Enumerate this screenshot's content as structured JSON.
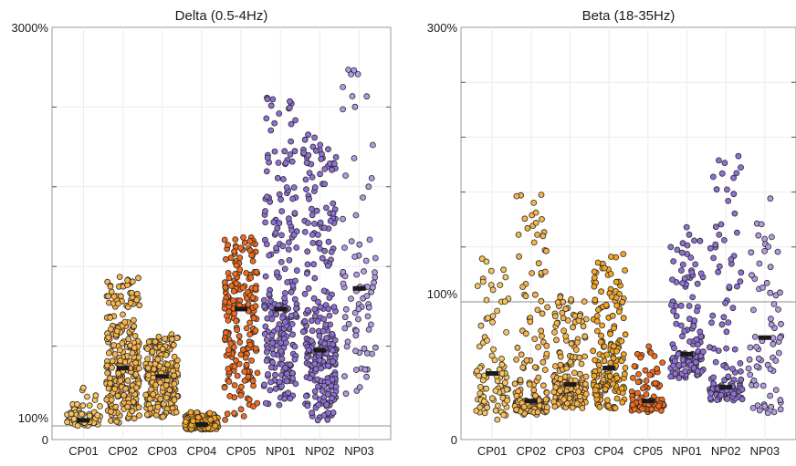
{
  "chart_data": [
    {
      "type": "scatter",
      "title": "Delta (0.5-4Hz)",
      "ytick_labels": [
        "3000%",
        "100%",
        "0"
      ],
      "ylim": [
        0,
        3000
      ],
      "reference_line": 100,
      "grid": true,
      "categories": [
        "CP01",
        "CP02",
        "CP03",
        "CP04",
        "CP05",
        "NP01",
        "NP02",
        "NP03"
      ],
      "groups": [
        {
          "name": "CP01",
          "color": "#f7c45e",
          "count": 70,
          "min": 100,
          "max": 380,
          "median": 140
        },
        {
          "name": "CP02",
          "color": "#f7b44a",
          "count": 260,
          "min": 110,
          "max": 1200,
          "median": 520
        },
        {
          "name": "CP03",
          "color": "#f7b44a",
          "count": 230,
          "min": 160,
          "max": 770,
          "median": 460
        },
        {
          "name": "CP04",
          "color": "#f5a623",
          "count": 140,
          "min": 70,
          "max": 200,
          "median": 110
        },
        {
          "name": "CP05",
          "color": "#f26a1b",
          "count": 210,
          "min": 120,
          "max": 1480,
          "median": 950
        },
        {
          "name": "NP01",
          "color": "#8f6fd6",
          "count": 230,
          "min": 250,
          "max": 2540,
          "median": 950
        },
        {
          "name": "NP02",
          "color": "#8f6fd6",
          "count": 270,
          "min": 120,
          "max": 2220,
          "median": 650
        },
        {
          "name": "NP03",
          "color": "#b39ae6",
          "count": 80,
          "min": 280,
          "max": 2800,
          "median": 1100
        }
      ]
    },
    {
      "type": "scatter",
      "title": "Beta (18-35Hz)",
      "ytick_labels": [
        "300%",
        "100%",
        "0"
      ],
      "ylim": [
        0,
        300
      ],
      "reference_line": 100,
      "grid": true,
      "categories": [
        "CP01",
        "CP02",
        "CP03",
        "CP04",
        "CP05",
        "NP01",
        "NP02",
        "NP03"
      ],
      "groups": [
        {
          "name": "CP01",
          "color": "#f7c45e",
          "count": 90,
          "min": 14,
          "max": 138,
          "median": 48
        },
        {
          "name": "CP02",
          "color": "#f7b44a",
          "count": 180,
          "min": 18,
          "max": 179,
          "median": 28
        },
        {
          "name": "CP03",
          "color": "#f7b44a",
          "count": 200,
          "min": 22,
          "max": 105,
          "median": 40
        },
        {
          "name": "CP04",
          "color": "#f5a623",
          "count": 170,
          "min": 22,
          "max": 135,
          "median": 52
        },
        {
          "name": "CP05",
          "color": "#f26a1b",
          "count": 110,
          "min": 20,
          "max": 68,
          "median": 28
        },
        {
          "name": "NP01",
          "color": "#8f6fd6",
          "count": 140,
          "min": 44,
          "max": 155,
          "median": 62
        },
        {
          "name": "NP02",
          "color": "#8f6fd6",
          "count": 130,
          "min": 28,
          "max": 213,
          "median": 38
        },
        {
          "name": "NP03",
          "color": "#b39ae6",
          "count": 70,
          "min": 16,
          "max": 179,
          "median": 74
        }
      ]
    }
  ]
}
